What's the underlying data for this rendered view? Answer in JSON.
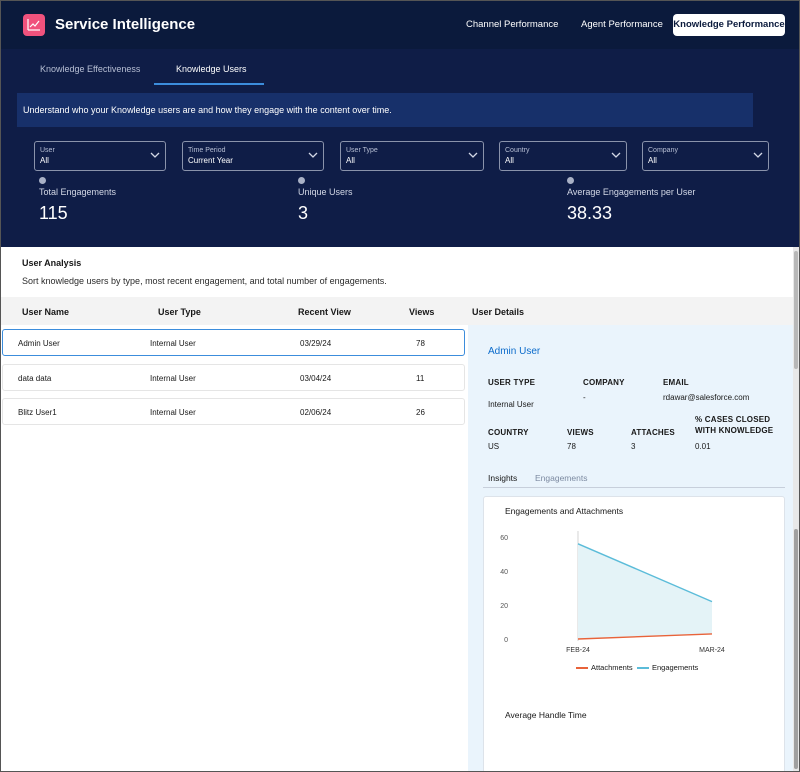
{
  "app": {
    "title": "Service Intelligence",
    "nav": [
      "Channel Performance",
      "Agent Performance",
      "Knowledge Performance"
    ],
    "active_nav": "Knowledge Performance"
  },
  "subnav": {
    "tabs": [
      "Knowledge Effectiveness",
      "Knowledge Users"
    ],
    "active_tab": "Knowledge Users",
    "description": "Understand who your Knowledge users are and how they engage with the content over time."
  },
  "filters": [
    {
      "label": "User",
      "value": "All"
    },
    {
      "label": "Time Period",
      "value": "Current Year"
    },
    {
      "label": "User Type",
      "value": "All"
    },
    {
      "label": "Country",
      "value": "All"
    },
    {
      "label": "Company",
      "value": "All"
    }
  ],
  "kpis": [
    {
      "label": "Total Engagements",
      "value": "115"
    },
    {
      "label": "Unique Users",
      "value": "3"
    },
    {
      "label": "Average Engagements per User",
      "value": "38.33"
    }
  ],
  "user_analysis": {
    "title": "User Analysis",
    "description": "Sort knowledge users by type, most recent engagement, and total number of engagements.",
    "columns": [
      "User Name",
      "User Type",
      "Recent View",
      "Views",
      "User Details"
    ],
    "rows": [
      {
        "name": "Admin User",
        "type": "Internal User",
        "recent": "03/29/24",
        "views": "78"
      },
      {
        "name": "data data",
        "type": "Internal User",
        "recent": "03/04/24",
        "views": "11"
      },
      {
        "name": "Blitz User1",
        "type": "Internal User",
        "recent": "02/06/24",
        "views": "26"
      }
    ]
  },
  "details": {
    "name": "Admin User",
    "user_type_label": "USER TYPE",
    "user_type": "Internal User",
    "company_label": "COMPANY",
    "company": "-",
    "email_label": "EMAIL",
    "email": "rdawar@salesforce.com",
    "country_label": "COUNTRY",
    "country": "US",
    "views_label": "VIEWS",
    "views": "78",
    "attaches_label": "ATTACHES",
    "attaches": "3",
    "cases_label_1": "% CASES CLOSED",
    "cases_label_2": "WITH KNOWLEDGE",
    "cases": "0.01",
    "tabs": [
      "Insights",
      "Engagements"
    ],
    "active_tab": "Insights",
    "second_chart_title": "Average Handle Time"
  },
  "colors": {
    "attachments": "#e8633a",
    "engagements": "#5bbcd9",
    "header_bg": "#0b1a3c",
    "accent": "#0b6bcb"
  },
  "chart_data": {
    "type": "line",
    "title": "Engagements and Attachments",
    "categories": [
      "FEB-24",
      "MAR-24"
    ],
    "series": [
      {
        "name": "Attachments",
        "values": [
          0,
          3
        ]
      },
      {
        "name": "Engagements",
        "values": [
          56,
          22
        ]
      }
    ],
    "yticks": [
      0,
      20,
      40,
      60
    ],
    "ylim": [
      0,
      60
    ],
    "legend": "bottom",
    "grid": false
  }
}
